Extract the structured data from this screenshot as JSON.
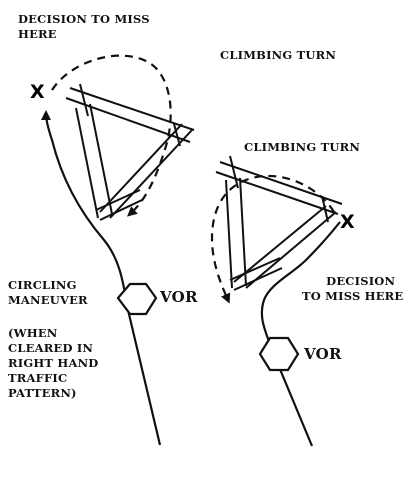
{
  "labels": {
    "decision_left": [
      "DECISION TO MISS",
      "HERE"
    ],
    "climbing_turn_top": "CLIMBING TURN",
    "climbing_turn_right": "CLIMBING TURN",
    "circling": [
      "CIRCLING",
      "MANEUVER"
    ],
    "when_cleared": [
      "(WHEN",
      "CLEARED IN",
      "RIGHT HAND",
      "TRAFFIC",
      "PATTERN)"
    ],
    "decision_right": [
      "DECISION",
      "TO MISS HERE"
    ],
    "vor_left": "VOR",
    "vor_right": "VOR",
    "x_left": "X",
    "x_right": "X"
  }
}
